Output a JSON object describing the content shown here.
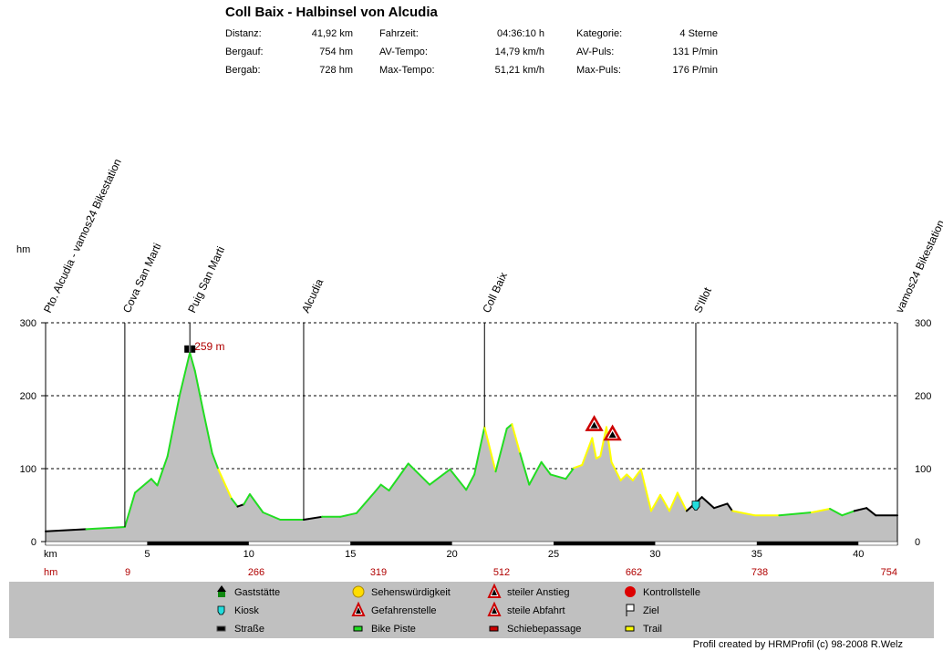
{
  "header": {
    "title": "Coll Baix - Halbinsel von Alcudia",
    "stats": [
      [
        {
          "label": "Distanz:",
          "value": "41,92 km"
        },
        {
          "label": "Fahrzeit:",
          "value": "04:36:10 h"
        },
        {
          "label": "Kategorie:",
          "value": "4 Sterne"
        }
      ],
      [
        {
          "label": "Bergauf:",
          "value": "754 hm"
        },
        {
          "label": "AV-Tempo:",
          "value": "14,79 km/h"
        },
        {
          "label": "AV-Puls:",
          "value": "131 P/min"
        }
      ],
      [
        {
          "label": "Bergab:",
          "value": "728 hm"
        },
        {
          "label": "Max-Tempo:",
          "value": "51,21 km/h"
        },
        {
          "label": "Max-Puls:",
          "value": "176 P/min"
        }
      ]
    ]
  },
  "chart_data": {
    "type": "area",
    "title": "Coll Baix - Halbinsel von Alcudia",
    "xlabel": "km",
    "ylabel": "hm",
    "xlim": [
      0,
      41.92
    ],
    "ylim": [
      0,
      300
    ],
    "yticks": [
      "300",
      "200",
      "100",
      "0"
    ],
    "xticks": [
      "5",
      "10",
      "15",
      "20",
      "25",
      "30",
      "35",
      "40"
    ],
    "grid": true,
    "hm_row_label": "hm",
    "hm_cumulative": [
      "9",
      "266",
      "319",
      "512",
      "662",
      "738",
      "754"
    ],
    "surface_colors": {
      "S": "#000000",
      "B": "#22dd22",
      "T": "#ffff00"
    },
    "profile": [
      [
        0,
        14,
        "S"
      ],
      [
        2.0,
        17,
        "B"
      ],
      [
        3.9,
        20,
        "B"
      ],
      [
        4.4,
        67,
        "B"
      ],
      [
        5.2,
        86,
        "B"
      ],
      [
        5.5,
        77,
        "B"
      ],
      [
        6.0,
        117,
        "B"
      ],
      [
        6.6,
        201,
        "B"
      ],
      [
        7.1,
        259,
        "B"
      ],
      [
        7.35,
        234,
        "B"
      ],
      [
        7.75,
        180,
        "B"
      ],
      [
        8.2,
        121,
        "B"
      ],
      [
        8.5,
        99,
        "T"
      ],
      [
        9.15,
        59,
        "B"
      ],
      [
        9.45,
        48,
        "S"
      ],
      [
        9.75,
        51,
        "B"
      ],
      [
        10.05,
        65,
        "B"
      ],
      [
        10.7,
        40,
        "B"
      ],
      [
        11.55,
        30,
        "B"
      ],
      [
        12.7,
        30,
        "S"
      ],
      [
        13.6,
        34,
        "B"
      ],
      [
        14.5,
        34,
        "B"
      ],
      [
        15.3,
        39,
        "B"
      ],
      [
        16.2,
        68,
        "B"
      ],
      [
        16.5,
        78,
        "B"
      ],
      [
        16.9,
        70,
        "B"
      ],
      [
        17.85,
        107,
        "B"
      ],
      [
        18.9,
        78,
        "B"
      ],
      [
        19.9,
        99,
        "B"
      ],
      [
        20.7,
        71,
        "B"
      ],
      [
        21.1,
        92,
        "B"
      ],
      [
        21.6,
        157,
        "T"
      ],
      [
        22.15,
        96,
        "B"
      ],
      [
        22.7,
        155,
        "B"
      ],
      [
        22.95,
        161,
        "T"
      ],
      [
        23.35,
        121,
        "B"
      ],
      [
        23.8,
        78,
        "B"
      ],
      [
        24.4,
        109,
        "B"
      ],
      [
        24.85,
        92,
        "B"
      ],
      [
        25.6,
        86,
        "B"
      ],
      [
        26.0,
        101,
        "T"
      ],
      [
        26.4,
        105,
        "T"
      ],
      [
        26.9,
        142,
        "T"
      ],
      [
        27.1,
        114,
        "T"
      ],
      [
        27.3,
        117,
        "T"
      ],
      [
        27.6,
        157,
        "T"
      ],
      [
        27.85,
        109,
        "T"
      ],
      [
        28.3,
        84,
        "T"
      ],
      [
        28.6,
        92,
        "T"
      ],
      [
        28.9,
        84,
        "T"
      ],
      [
        29.3,
        99,
        "T"
      ],
      [
        29.8,
        42,
        "T"
      ],
      [
        30.25,
        64,
        "T"
      ],
      [
        30.7,
        42,
        "T"
      ],
      [
        31.1,
        67,
        "T"
      ],
      [
        31.55,
        42,
        "S"
      ],
      [
        32.3,
        61,
        "S"
      ],
      [
        32.9,
        46,
        "S"
      ],
      [
        33.55,
        52,
        "S"
      ],
      [
        33.8,
        42,
        "T"
      ],
      [
        34.9,
        36,
        "T"
      ],
      [
        36.1,
        36,
        "B"
      ],
      [
        37.7,
        40,
        "T"
      ],
      [
        38.6,
        45,
        "B"
      ],
      [
        39.2,
        36,
        "B"
      ],
      [
        39.8,
        42,
        "S"
      ],
      [
        40.4,
        46,
        "S"
      ],
      [
        40.85,
        36,
        "S"
      ],
      [
        41.92,
        36,
        "S"
      ]
    ],
    "waypoints": [
      {
        "km": 0,
        "name": "Pto. Alcudia - vamos24 Bikestation"
      },
      {
        "km": 3.9,
        "name": "Cova San Marti"
      },
      {
        "km": 7.1,
        "name": "Puig San Marti"
      },
      {
        "km": 12.7,
        "name": "Alcudia"
      },
      {
        "km": 21.6,
        "name": "Coll Baix"
      },
      {
        "km": 32.0,
        "name": "S'Illot"
      },
      {
        "km": 41.92,
        "name": "vamos24 Bikestation"
      }
    ],
    "markers": [
      {
        "km": 7.1,
        "elev": 259,
        "type": "binoculars",
        "label": "259 m"
      },
      {
        "km": 27.0,
        "elev": 153,
        "type": "steep-climb"
      },
      {
        "km": 27.9,
        "elev": 140,
        "type": "steep-descent"
      },
      {
        "km": 32.0,
        "elev": 48,
        "type": "kiosk"
      }
    ]
  },
  "legend": [
    {
      "icon": "gaststaette",
      "label": "Gaststätte"
    },
    {
      "icon": "sehenswuerdigkeit",
      "label": "Sehenswürdigkeit"
    },
    {
      "icon": "steiler-anstieg",
      "label": "steiler Anstieg"
    },
    {
      "icon": "kontrollstelle",
      "label": "Kontrollstelle"
    },
    {
      "icon": "kiosk",
      "label": "Kiosk"
    },
    {
      "icon": "gefahrenstelle",
      "label": "Gefahrenstelle"
    },
    {
      "icon": "steile-abfahrt",
      "label": "steile Abfahrt"
    },
    {
      "icon": "ziel",
      "label": "Ziel"
    },
    {
      "icon": "strasse",
      "label": "Straße"
    },
    {
      "icon": "bike-piste",
      "label": "Bike Piste"
    },
    {
      "icon": "schiebepassage",
      "label": "Schiebepassage"
    },
    {
      "icon": "trail",
      "label": "Trail"
    }
  ],
  "footer": "Profil created by HRMProfil (c) 98-2008 R.Welz"
}
